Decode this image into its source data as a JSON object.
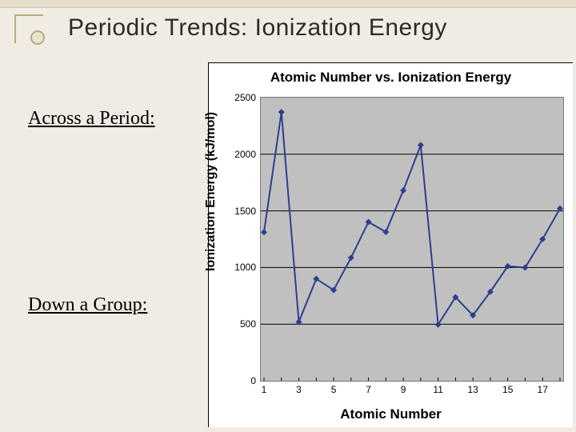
{
  "slide": {
    "title": "Periodic Trends:  Ionization Energy",
    "label_across": "Across a Period:",
    "label_down": "Down a Group:"
  },
  "chart": {
    "type": "line",
    "title": "Atomic Number vs. Ionization Energy",
    "ylabel": "Ionization Energy (kJ/mol)",
    "xlabel": "Atomic Number",
    "background_color": "#c0c0c0",
    "plot_border_color": "#7a7a7a",
    "page_bg": "#f1ece3",
    "grid_color": "#000000",
    "line_color": "#2c3e8f",
    "marker_color": "#2c3e8f",
    "marker_style": "diamond",
    "marker_size": 8,
    "line_width": 2,
    "ylim": [
      0,
      2500
    ],
    "ytick_step": 500,
    "yticks": [
      0,
      500,
      1000,
      1500,
      2000,
      2500
    ],
    "xlim": [
      1,
      18
    ],
    "xticks": [
      1,
      3,
      5,
      7,
      9,
      11,
      13,
      15,
      17
    ],
    "x": [
      1,
      2,
      3,
      4,
      5,
      6,
      7,
      8,
      9,
      10,
      11,
      12,
      13,
      14,
      15,
      16,
      17,
      18
    ],
    "y": [
      1312,
      2372,
      520,
      900,
      801,
      1087,
      1402,
      1314,
      1681,
      2081,
      496,
      738,
      578,
      786,
      1012,
      1000,
      1251,
      1521
    ],
    "title_fontsize": 17,
    "label_fontsize": 16,
    "tick_fontsize": 12
  }
}
